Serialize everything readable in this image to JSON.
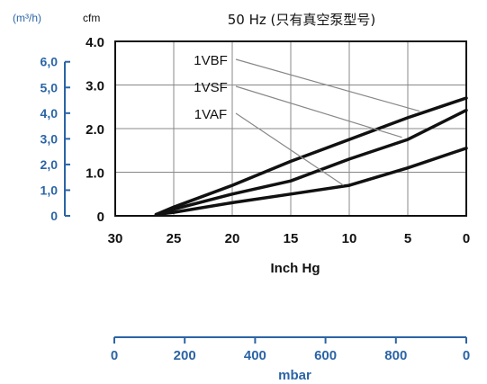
{
  "chart_data": {
    "type": "line",
    "title": "50 Hz (只有真空泵型号)",
    "colors": {
      "ink": "#111111",
      "metric": "#2b64a6",
      "grid": "#888888"
    },
    "x_axis": {
      "label": "Inch Hg",
      "lim": [
        30,
        0
      ],
      "ticks": [
        30,
        25,
        20,
        15,
        10,
        5,
        0
      ],
      "tick_labels": [
        "30",
        "25",
        "20",
        "15",
        "10",
        "5",
        "0"
      ]
    },
    "y_axis": {
      "unit": "cfm",
      "lim": [
        0,
        4.0
      ],
      "ticks": [
        0,
        1.0,
        2.0,
        3.0,
        4.0
      ],
      "tick_labels": [
        "0",
        "1.0",
        "2.0",
        "3.0",
        "4.0"
      ],
      "grid": true
    },
    "y_axis_metric": {
      "unit": "(m³/h)",
      "ticks_m3h": [
        0,
        1,
        2,
        3,
        4,
        5,
        6
      ],
      "tick_labels": [
        "0",
        "1,0",
        "2,0",
        "3,0",
        "4,0",
        "5,0",
        "6,0"
      ]
    },
    "x_axis_metric": {
      "label": "mbar",
      "lim": [
        1000,
        0
      ],
      "ticks": [
        1000,
        800,
        600,
        400,
        200,
        0
      ],
      "tick_labels": [
        "0",
        "200",
        "400",
        "600",
        "800",
        "0"
      ]
    },
    "series": [
      {
        "name": "1VBF",
        "x": [
          26.5,
          25,
          20,
          15,
          10,
          5,
          0
        ],
        "y": [
          0.03,
          0.2,
          0.7,
          1.25,
          1.75,
          2.25,
          2.7
        ],
        "label_anchor": [
          4,
          2.4
        ]
      },
      {
        "name": "1VSF",
        "x": [
          26.5,
          25,
          20,
          15,
          10,
          5,
          0
        ],
        "y": [
          0.03,
          0.15,
          0.5,
          0.8,
          1.3,
          1.75,
          2.42
        ],
        "label_anchor": [
          5.5,
          1.8
        ]
      },
      {
        "name": "1VAF",
        "x": [
          26.5,
          25,
          20,
          15,
          10,
          5,
          0
        ],
        "y": [
          0.03,
          0.08,
          0.3,
          0.5,
          0.7,
          1.1,
          1.55
        ],
        "label_anchor": [
          10.5,
          0.7
        ]
      }
    ]
  }
}
